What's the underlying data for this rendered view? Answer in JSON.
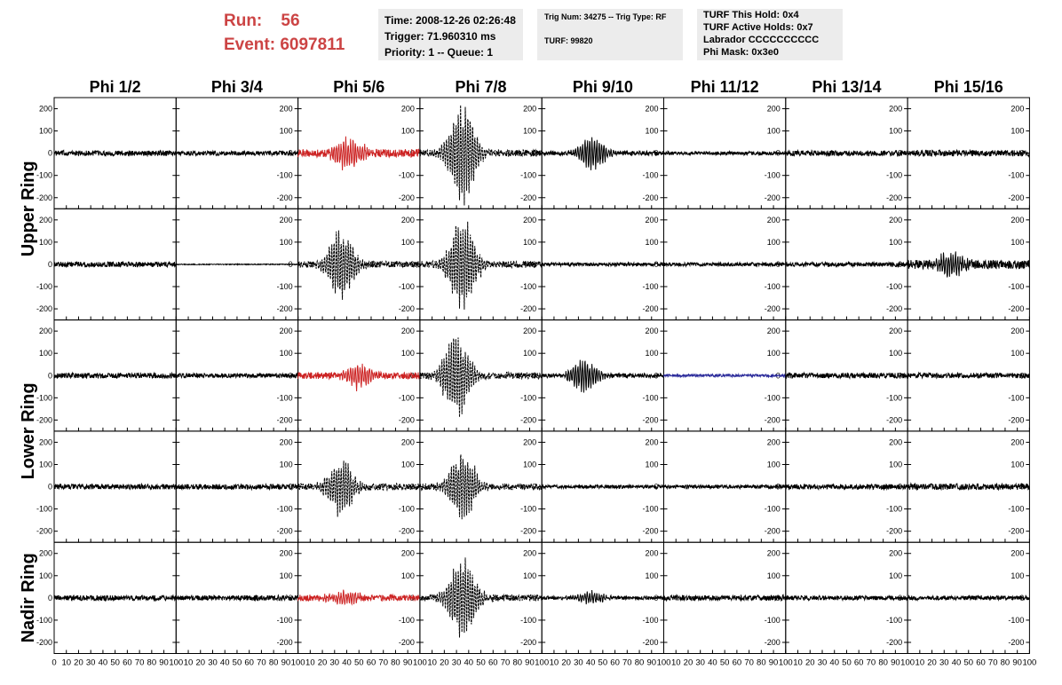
{
  "header": {
    "run_label": "Run:",
    "run_value": "56",
    "event_label": "Event:",
    "event_value": "6097811",
    "time": "Time: 2008-12-26 02:26:48",
    "trigger": "Trigger: 71.960310 ms",
    "priority": "Priority: 1 -- Queue: 1",
    "trig_num": "Trig Num: 34275 -- Trig Type: RF",
    "turf": "TURF: 99820",
    "turf_this_hold": "TURF This Hold: 0x4",
    "turf_active_holds": "TURF Active Holds: 0x7",
    "labrador": "Labrador CCCCCCCCCC",
    "phi_mask": "Phi Mask: 0x3e0"
  },
  "colors": {
    "header_red": "#cc4444",
    "panel_gray": "#ececec",
    "trace_black": "#000000",
    "trace_red": "#cc2222",
    "trace_blue": "#2a2a9a"
  },
  "chart_data": {
    "type": "line",
    "columns": [
      "Phi 1/2",
      "Phi 3/4",
      "Phi 5/6",
      "Phi 7/8",
      "Phi 9/10",
      "Phi 11/12",
      "Phi 13/14",
      "Phi 15/16"
    ],
    "ring_labels": [
      {
        "text": "Upper Ring",
        "rows": [
          0,
          1
        ]
      },
      {
        "text": "Lower Ring",
        "rows": [
          2,
          3
        ]
      },
      {
        "text": "Nadir Ring",
        "rows": [
          4
        ]
      }
    ],
    "xlim": [
      0,
      100
    ],
    "ylim": [
      -250,
      250
    ],
    "x_ticks": [
      0,
      10,
      20,
      30,
      40,
      50,
      60,
      70,
      80,
      90,
      100
    ],
    "x_tick_labels": [
      "0",
      "10",
      "20",
      "30",
      "40",
      "50",
      "60",
      "70",
      "80",
      "90",
      "100"
    ],
    "y_ticks": [
      -200,
      -100,
      0,
      100,
      200
    ],
    "y_tick_labels": [
      "-200",
      "-100",
      "0",
      "100",
      "200"
    ],
    "rows": [
      [
        {
          "amp": 12,
          "pulse": 0,
          "center": 40,
          "color": "black"
        },
        {
          "amp": 10,
          "pulse": 0,
          "center": 40,
          "color": "black"
        },
        {
          "amp": 18,
          "pulse": 80,
          "center": 42,
          "color": "red"
        },
        {
          "amp": 15,
          "pulse": 240,
          "center": 35,
          "color": "black"
        },
        {
          "amp": 10,
          "pulse": 80,
          "center": 42,
          "color": "black"
        },
        {
          "amp": 8,
          "pulse": 0,
          "center": 40,
          "color": "black"
        },
        {
          "amp": 12,
          "pulse": 0,
          "center": 40,
          "color": "black"
        },
        {
          "amp": 14,
          "pulse": 0,
          "center": 40,
          "color": "black"
        }
      ],
      [
        {
          "amp": 12,
          "pulse": 0,
          "center": 40,
          "color": "black"
        },
        {
          "amp": 2,
          "pulse": 0,
          "center": 40,
          "color": "black"
        },
        {
          "amp": 15,
          "pulse": 170,
          "center": 35,
          "color": "black"
        },
        {
          "amp": 15,
          "pulse": 220,
          "center": 35,
          "color": "black"
        },
        {
          "amp": 8,
          "pulse": 0,
          "center": 40,
          "color": "black"
        },
        {
          "amp": 8,
          "pulse": 0,
          "center": 40,
          "color": "black"
        },
        {
          "amp": 10,
          "pulse": 0,
          "center": 40,
          "color": "black"
        },
        {
          "amp": 20,
          "pulse": 60,
          "center": 35,
          "color": "black"
        }
      ],
      [
        {
          "amp": 12,
          "pulse": 0,
          "center": 40,
          "color": "black"
        },
        {
          "amp": 10,
          "pulse": 0,
          "center": 40,
          "color": "black"
        },
        {
          "amp": 15,
          "pulse": 60,
          "center": 50,
          "color": "red"
        },
        {
          "amp": 15,
          "pulse": 200,
          "center": 30,
          "color": "black"
        },
        {
          "amp": 10,
          "pulse": 80,
          "center": 35,
          "color": "black"
        },
        {
          "amp": 6,
          "pulse": 0,
          "center": 40,
          "color": "blue"
        },
        {
          "amp": 12,
          "pulse": 0,
          "center": 40,
          "color": "black"
        },
        {
          "amp": 12,
          "pulse": 0,
          "center": 40,
          "color": "black"
        }
      ],
      [
        {
          "amp": 12,
          "pulse": 0,
          "center": 40,
          "color": "black"
        },
        {
          "amp": 12,
          "pulse": 0,
          "center": 40,
          "color": "black"
        },
        {
          "amp": 15,
          "pulse": 130,
          "center": 35,
          "color": "black"
        },
        {
          "amp": 15,
          "pulse": 170,
          "center": 35,
          "color": "black"
        },
        {
          "amp": 8,
          "pulse": 0,
          "center": 40,
          "color": "black"
        },
        {
          "amp": 8,
          "pulse": 0,
          "center": 40,
          "color": "black"
        },
        {
          "amp": 12,
          "pulse": 0,
          "center": 40,
          "color": "black"
        },
        {
          "amp": 14,
          "pulse": 0,
          "center": 40,
          "color": "black"
        }
      ],
      [
        {
          "amp": 12,
          "pulse": 0,
          "center": 40,
          "color": "black"
        },
        {
          "amp": 12,
          "pulse": 0,
          "center": 40,
          "color": "black"
        },
        {
          "amp": 14,
          "pulse": 40,
          "center": 38,
          "color": "red"
        },
        {
          "amp": 15,
          "pulse": 210,
          "center": 35,
          "color": "black"
        },
        {
          "amp": 8,
          "pulse": 30,
          "center": 40,
          "color": "black"
        },
        {
          "amp": 12,
          "pulse": 0,
          "center": 40,
          "color": "black"
        },
        {
          "amp": 10,
          "pulse": 0,
          "center": 40,
          "color": "black"
        },
        {
          "amp": 10,
          "pulse": 0,
          "center": 40,
          "color": "black"
        }
      ]
    ]
  }
}
